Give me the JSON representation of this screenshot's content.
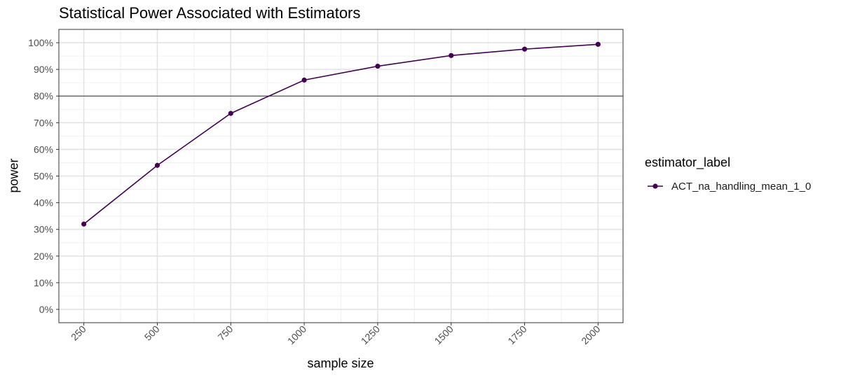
{
  "chart_data": {
    "type": "line",
    "title": "Statistical Power Associated with Estimators",
    "xlabel": "sample size",
    "ylabel": "power",
    "x": [
      250,
      500,
      750,
      1000,
      1250,
      1500,
      1750,
      2000
    ],
    "x_ticks": [
      250,
      500,
      750,
      1000,
      1250,
      1500,
      1750,
      2000
    ],
    "y_ticks": [
      0,
      10,
      20,
      30,
      40,
      50,
      60,
      70,
      80,
      90,
      100
    ],
    "y_tick_labels": [
      "0%",
      "10%",
      "20%",
      "30%",
      "40%",
      "50%",
      "60%",
      "70%",
      "80%",
      "90%",
      "100%"
    ],
    "xlim": [
      165,
      2085
    ],
    "ylim": [
      -5,
      105
    ],
    "y_unit": "percent",
    "reference_line": {
      "y": 80
    },
    "grid": true,
    "legend": {
      "title": "estimator_label",
      "placement": "right"
    },
    "series": [
      {
        "name": "ACT_na_handling_mean_1_0",
        "color": "#440154",
        "values": [
          32,
          54,
          73.5,
          86,
          91.2,
          95.2,
          97.6,
          99.4
        ]
      }
    ]
  }
}
